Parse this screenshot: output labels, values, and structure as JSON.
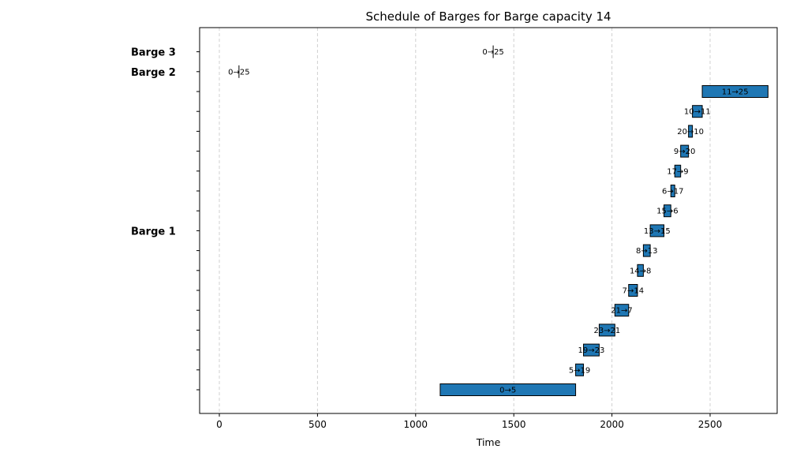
{
  "chart_data": {
    "type": "gantt",
    "title": "Schedule of Barges for Barge capacity 14",
    "xlabel": "Time",
    "ylabel": "",
    "xlim": [
      -100,
      2840
    ],
    "xticks": [
      0,
      500,
      1000,
      1500,
      2000,
      2500
    ],
    "grid": "x-dashed",
    "bar_color": "#1f77b4",
    "rows": [
      {
        "row": 0,
        "label": "",
        "start": 1125,
        "end": 1815,
        "text": "0→5"
      },
      {
        "row": 1,
        "label": "",
        "start": 1815,
        "end": 1855,
        "text": "5→19"
      },
      {
        "row": 2,
        "label": "",
        "start": 1855,
        "end": 1935,
        "text": "19→23"
      },
      {
        "row": 3,
        "label": "",
        "start": 1935,
        "end": 2015,
        "text": "23→21"
      },
      {
        "row": 4,
        "label": "",
        "start": 2015,
        "end": 2085,
        "text": "21→7"
      },
      {
        "row": 5,
        "label": "",
        "start": 2085,
        "end": 2130,
        "text": "7→14"
      },
      {
        "row": 6,
        "label": "",
        "start": 2130,
        "end": 2160,
        "text": "14→8"
      },
      {
        "row": 7,
        "label": "",
        "start": 2160,
        "end": 2195,
        "text": "8→13"
      },
      {
        "row": 8,
        "label": "Barge 1",
        "start": 2195,
        "end": 2265,
        "text": "13→15"
      },
      {
        "row": 9,
        "label": "",
        "start": 2265,
        "end": 2300,
        "text": "15→6"
      },
      {
        "row": 10,
        "label": "",
        "start": 2300,
        "end": 2320,
        "text": "6→17"
      },
      {
        "row": 11,
        "label": "",
        "start": 2320,
        "end": 2350,
        "text": "17→9"
      },
      {
        "row": 12,
        "label": "",
        "start": 2350,
        "end": 2390,
        "text": "9→20"
      },
      {
        "row": 13,
        "label": "",
        "start": 2390,
        "end": 2410,
        "text": "20→10"
      },
      {
        "row": 14,
        "label": "",
        "start": 2410,
        "end": 2460,
        "text": "10→11"
      },
      {
        "row": 15,
        "label": "",
        "start": 2460,
        "end": 2795,
        "text": "11→25"
      },
      {
        "row": 16,
        "label": "Barge 2",
        "start": 100,
        "end": 100,
        "text": "0→25"
      },
      {
        "row": 17,
        "label": "Barge 3",
        "start": 1395,
        "end": 1395,
        "text": "0→25"
      }
    ]
  }
}
